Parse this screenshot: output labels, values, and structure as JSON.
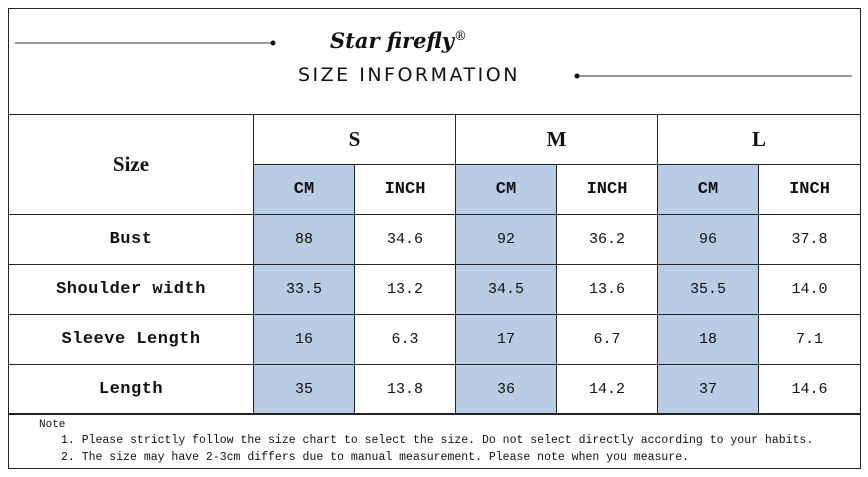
{
  "header": {
    "brand": "Star firefly",
    "registered": "®",
    "title": "SIZE INFORMATION"
  },
  "table": {
    "corner": "Size",
    "sizes": [
      "S",
      "M",
      "L"
    ],
    "units": [
      "CM",
      "INCH",
      "CM",
      "INCH",
      "CM",
      "INCH"
    ],
    "rows": [
      {
        "label": "Bust",
        "values": [
          "88",
          "34.6",
          "92",
          "36.2",
          "96",
          "37.8"
        ]
      },
      {
        "label": "Shoulder width",
        "values": [
          "33.5",
          "13.2",
          "34.5",
          "13.6",
          "35.5",
          "14.0"
        ]
      },
      {
        "label": "Sleeve Length",
        "values": [
          "16",
          "6.3",
          "17",
          "6.7",
          "18",
          "7.1"
        ]
      },
      {
        "label": "Length",
        "values": [
          "35",
          "13.8",
          "36",
          "14.2",
          "37",
          "14.6"
        ]
      }
    ]
  },
  "note": {
    "title": "Note",
    "items": [
      "1. Please strictly follow the size chart to select the size. Do not select directly according to your habits.",
      "2. The size may have 2-3cm differs due to manual measurement. Please note when you measure."
    ]
  }
}
